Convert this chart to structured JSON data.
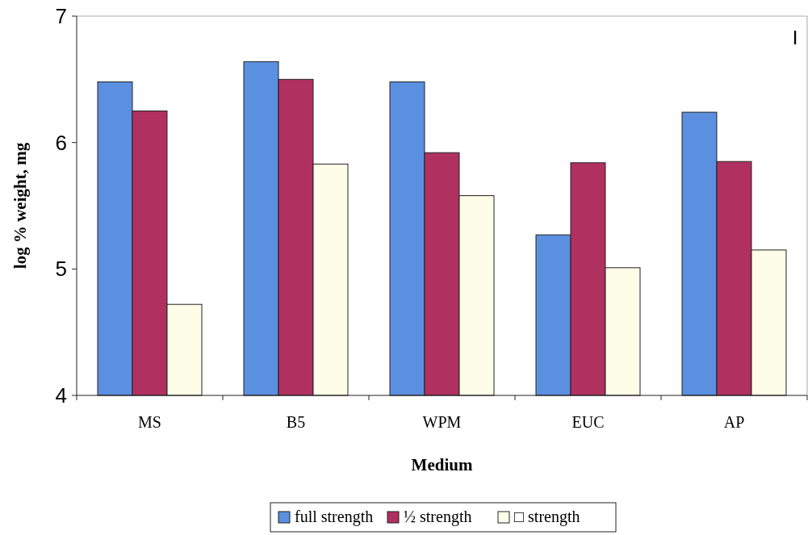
{
  "chart_data": {
    "type": "bar",
    "xlabel": "Medium",
    "ylabel": "log % weight, mg",
    "categories": [
      "MS",
      "B5",
      "WPM",
      "EUC",
      "AP"
    ],
    "series": [
      {
        "name": "full strength",
        "color": "#5b8fdf",
        "values": [
          6.48,
          6.64,
          6.48,
          5.27,
          6.24
        ]
      },
      {
        "name": "½ strength",
        "color": "#b03060",
        "values": [
          6.25,
          6.5,
          5.92,
          5.84,
          5.85
        ]
      },
      {
        "name": "□ strength",
        "color": "#fdfde8",
        "values": [
          4.72,
          5.83,
          5.58,
          5.01,
          5.15
        ]
      }
    ],
    "ylim": [
      4,
      7
    ],
    "yticks": [
      4,
      5,
      6,
      7
    ],
    "grid": false,
    "legend": "bottom",
    "annotations": [
      "I"
    ]
  }
}
